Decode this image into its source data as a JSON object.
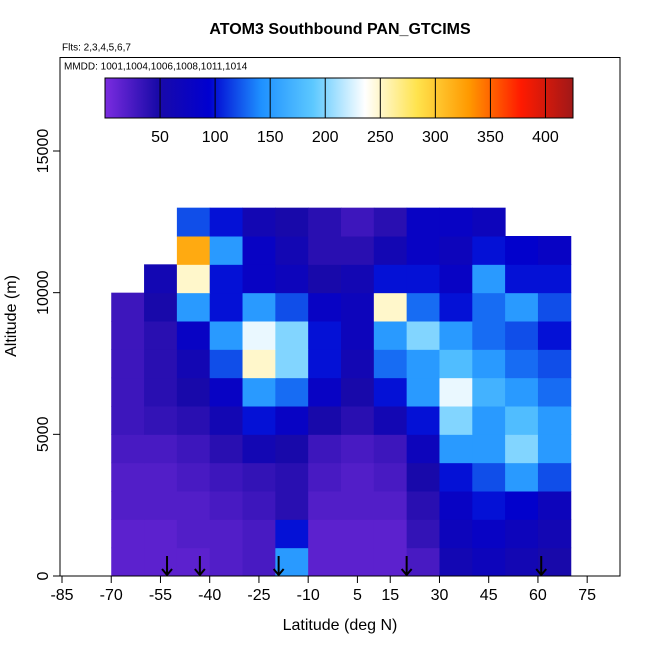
{
  "chart_data": {
    "type": "heatmap",
    "title": "ATOM3 Southbound PAN_GTCIMS",
    "subtitle": "Flts: 2,3,4,5,6,7",
    "annotation": "MMDD: 1001,1004,1006,1008,1011,1014",
    "x_label": "Latitude (deg N)",
    "y_label": "Altitude (m)",
    "xlim": [
      -85,
      85
    ],
    "ylim": [
      0,
      18300
    ],
    "xticks": [
      -85,
      -70,
      -55,
      -40,
      -25,
      -10,
      5,
      15,
      30,
      45,
      60,
      75
    ],
    "yticks": [
      0,
      5000,
      10000,
      15000
    ],
    "lat_edges": [
      -70,
      -60,
      -50,
      -40,
      -30,
      -20,
      -10,
      0,
      10,
      20,
      30,
      40,
      50,
      60,
      70
    ],
    "alt_edges": [
      0,
      1000,
      2000,
      3000,
      4000,
      5000,
      6000,
      7000,
      8000,
      9000,
      10000,
      11000,
      12000,
      13000
    ],
    "values": [
      [
        15,
        15,
        15,
        20,
        25,
        150,
        15,
        15,
        15,
        25,
        60,
        70,
        60,
        50
      ],
      [
        15,
        15,
        20,
        20,
        25,
        100,
        15,
        15,
        15,
        35,
        70,
        80,
        70,
        60
      ],
      [
        20,
        20,
        20,
        25,
        30,
        40,
        20,
        20,
        20,
        40,
        80,
        100,
        90,
        70
      ],
      [
        20,
        20,
        25,
        30,
        35,
        40,
        25,
        20,
        25,
        50,
        100,
        120,
        150,
        120
      ],
      [
        25,
        25,
        30,
        40,
        60,
        50,
        30,
        25,
        30,
        70,
        150,
        150,
        200,
        150
      ],
      [
        30,
        35,
        40,
        60,
        100,
        80,
        50,
        40,
        60,
        100,
        200,
        150,
        180,
        150
      ],
      [
        30,
        40,
        50,
        80,
        150,
        130,
        80,
        50,
        100,
        150,
        230,
        170,
        150,
        130
      ],
      [
        30,
        40,
        60,
        120,
        250,
        200,
        100,
        60,
        130,
        150,
        180,
        150,
        130,
        120
      ],
      [
        30,
        40,
        80,
        150,
        230,
        200,
        100,
        70,
        150,
        200,
        150,
        130,
        120,
        100
      ],
      [
        30,
        50,
        150,
        100,
        150,
        120,
        80,
        70,
        250,
        130,
        100,
        130,
        150,
        120
      ],
      [
        null,
        60,
        250,
        100,
        80,
        70,
        50,
        60,
        100,
        100,
        80,
        150,
        100,
        100
      ],
      [
        null,
        null,
        320,
        150,
        80,
        60,
        40,
        40,
        60,
        80,
        70,
        100,
        90,
        80
      ],
      [
        null,
        null,
        120,
        100,
        60,
        50,
        40,
        30,
        40,
        80,
        80,
        70,
        null,
        null
      ]
    ],
    "colorbar_lim": [
      0,
      425
    ],
    "colorbar_ticks": [
      50,
      100,
      150,
      200,
      250,
      300,
      350,
      400
    ],
    "colormap": [
      "#7b2ce0",
      "#1a0aa8",
      "#0000d0",
      "#1e90ff",
      "#5cc8ff",
      "#ffffff",
      "#ffe34d",
      "#ff9900",
      "#ff1a00",
      "#a01818"
    ],
    "arrow_latitudes": [
      -53,
      -43,
      -19,
      20,
      61
    ]
  }
}
